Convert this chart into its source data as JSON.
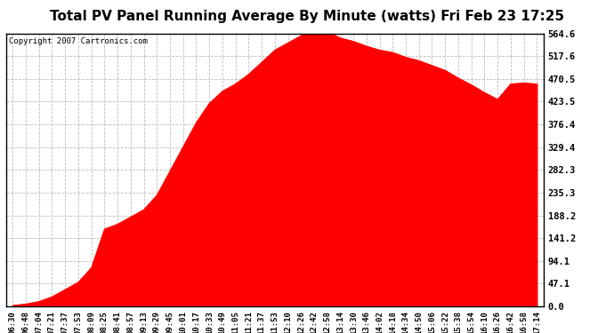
{
  "title": "Total PV Panel Running Average By Minute (watts) Fri Feb 23 17:25",
  "copyright": "Copyright 2007 Cartronics.com",
  "fill_color": "#FF0000",
  "line_color": "#FF0000",
  "background_color": "#FFFFFF",
  "grid_color": "#BEBEBE",
  "yticks": [
    0.0,
    47.1,
    94.1,
    141.2,
    188.2,
    235.3,
    282.3,
    329.4,
    376.4,
    423.5,
    470.5,
    517.6,
    564.6
  ],
  "ylim": [
    0.0,
    564.6
  ],
  "x_labels": [
    "06:30",
    "06:48",
    "07:04",
    "07:21",
    "07:37",
    "07:53",
    "08:09",
    "08:25",
    "08:41",
    "08:57",
    "09:13",
    "09:29",
    "09:45",
    "10:01",
    "10:17",
    "10:33",
    "10:49",
    "11:05",
    "11:21",
    "11:37",
    "11:53",
    "12:10",
    "12:26",
    "12:42",
    "12:58",
    "13:14",
    "13:30",
    "13:46",
    "14:02",
    "14:18",
    "14:34",
    "14:50",
    "15:06",
    "15:22",
    "15:38",
    "15:54",
    "16:10",
    "16:26",
    "16:42",
    "16:58",
    "17:14"
  ],
  "y_values": [
    2,
    5,
    10,
    20,
    35,
    50,
    80,
    160,
    170,
    185,
    200,
    230,
    280,
    330,
    380,
    420,
    445,
    460,
    480,
    505,
    530,
    545,
    560,
    570,
    568,
    555,
    548,
    538,
    530,
    525,
    515,
    508,
    498,
    488,
    472,
    458,
    442,
    428,
    460,
    462,
    460
  ],
  "title_fontsize": 11,
  "copyright_fontsize": 6.5,
  "tick_fontsize": 6.5,
  "ytick_fontsize": 7.5
}
